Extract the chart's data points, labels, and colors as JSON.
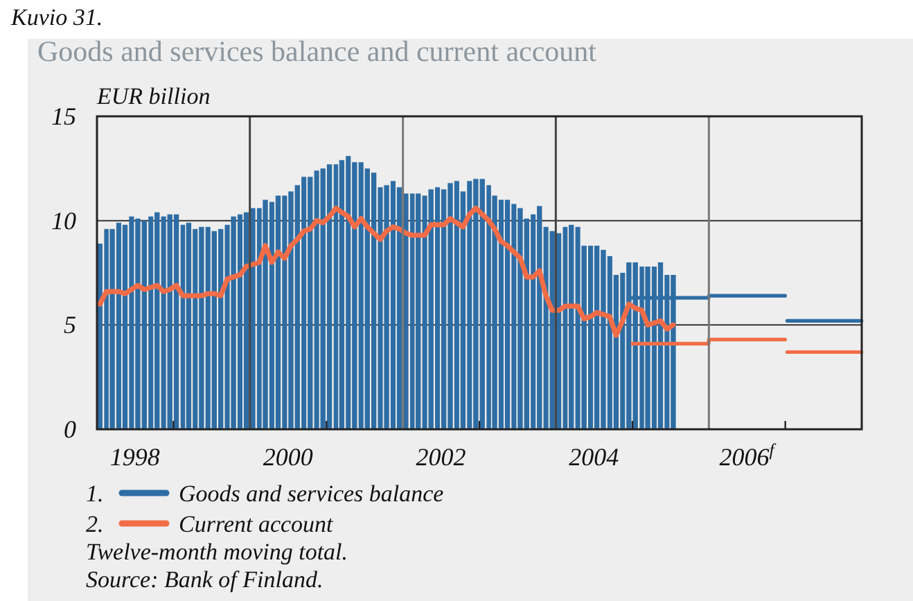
{
  "chart_data": {
    "type": "bar",
    "title": "Goods and services balance and current account",
    "ylabel": "EUR billion",
    "annotations": [
      "Kuvio 31.",
      "1.",
      "2.",
      "Twelve-month moving total.",
      "Source: Bank of Finland."
    ],
    "x": [
      "1998-01-15",
      "1998-02-15",
      "1998-03-15",
      "1998-04-15",
      "1998-05-15",
      "1998-06-15",
      "1998-07-15",
      "1998-08-15",
      "1998-09-15",
      "1998-10-15",
      "1998-11-15",
      "1998-12-15",
      "1999-01-15",
      "1999-02-15",
      "1999-03-15",
      "1999-04-15",
      "1999-05-15",
      "1999-06-15",
      "1999-07-15",
      "1999-08-15",
      "1999-09-15",
      "1999-10-15",
      "1999-11-15",
      "1999-12-15",
      "2000-01-15",
      "2000-02-15",
      "2000-03-15",
      "2000-04-15",
      "2000-05-15",
      "2000-06-15",
      "2000-07-15",
      "2000-08-15",
      "2000-09-15",
      "2000-10-15",
      "2000-11-15",
      "2000-12-15",
      "2001-01-15",
      "2001-02-15",
      "2001-03-15",
      "2001-04-15",
      "2001-05-15",
      "2001-06-15",
      "2001-07-15",
      "2001-08-15",
      "2001-09-15",
      "2001-10-15",
      "2001-11-15",
      "2001-12-15",
      "2002-01-15",
      "2002-02-15",
      "2002-03-15",
      "2002-04-15",
      "2002-05-15",
      "2002-06-15",
      "2002-07-15",
      "2002-08-15",
      "2002-09-15",
      "2002-10-15",
      "2002-11-15",
      "2002-12-15",
      "2003-01-15",
      "2003-02-15",
      "2003-03-15",
      "2003-04-15",
      "2003-05-15",
      "2003-06-15",
      "2003-07-15",
      "2003-08-15",
      "2003-09-15",
      "2003-10-15",
      "2003-11-15",
      "2003-12-15",
      "2004-01-15",
      "2004-02-15",
      "2004-03-15",
      "2004-04-15",
      "2004-05-15",
      "2004-06-15",
      "2004-07-15",
      "2004-08-15",
      "2004-09-15",
      "2004-10-15",
      "2004-11-15",
      "2004-12-15",
      "2005-01-15",
      "2005-02-15",
      "2005-03-15",
      "2005-04-15",
      "2005-05-15",
      "2005-06-15",
      "2005-07-15"
    ],
    "series": [
      {
        "name": "Goods and services balance",
        "color": "#2e6da4",
        "values": [
          8.9,
          9.6,
          9.6,
          9.9,
          9.8,
          10.2,
          10.1,
          10.0,
          10.2,
          10.4,
          10.2,
          10.3,
          10.3,
          9.8,
          9.9,
          9.6,
          9.7,
          9.7,
          9.5,
          9.6,
          9.8,
          10.2,
          10.3,
          10.4,
          10.6,
          10.6,
          11.0,
          10.9,
          11.2,
          11.2,
          11.4,
          11.7,
          12.1,
          12.1,
          12.4,
          12.5,
          12.7,
          12.7,
          12.9,
          13.1,
          12.8,
          12.8,
          12.5,
          12.3,
          11.6,
          11.7,
          11.9,
          11.6,
          11.3,
          11.3,
          11.3,
          11.2,
          11.5,
          11.6,
          11.5,
          11.8,
          11.9,
          11.4,
          11.9,
          12.0,
          12.0,
          11.7,
          11.2,
          11.0,
          11.0,
          10.8,
          10.6,
          10.1,
          10.3,
          10.7,
          9.7,
          9.5,
          9.4,
          9.7,
          9.8,
          9.7,
          8.8,
          8.8,
          8.8,
          8.6,
          8.3,
          7.4,
          7.5,
          8.0,
          8.0,
          7.8,
          7.8,
          7.8,
          8.0,
          7.4,
          7.4
        ]
      },
      {
        "name": "Current account",
        "type": "line",
        "color": "#f26d47",
        "values": [
          6.0,
          6.6,
          6.6,
          6.6,
          6.5,
          6.7,
          6.9,
          6.7,
          6.8,
          6.9,
          6.6,
          6.7,
          6.9,
          6.4,
          6.4,
          6.4,
          6.4,
          6.5,
          6.5,
          6.4,
          7.2,
          7.3,
          7.4,
          7.8,
          7.9,
          8.0,
          8.8,
          8.0,
          8.5,
          8.2,
          8.8,
          9.1,
          9.5,
          9.6,
          10.0,
          9.9,
          10.2,
          10.6,
          10.4,
          10.2,
          9.7,
          10.1,
          9.7,
          9.4,
          9.1,
          9.5,
          9.7,
          9.6,
          9.4,
          9.3,
          9.3,
          9.3,
          9.8,
          9.8,
          9.8,
          10.1,
          9.9,
          9.7,
          10.3,
          10.6,
          10.3,
          10.0,
          9.6,
          9.0,
          8.8,
          8.5,
          8.2,
          7.3,
          7.3,
          7.6,
          6.4,
          5.7,
          5.7,
          5.9,
          5.9,
          5.9,
          5.3,
          5.4,
          5.6,
          5.5,
          5.4,
          4.5,
          5.2,
          6.0,
          5.8,
          5.7,
          5.0,
          5.1,
          5.2,
          4.8,
          5.0
        ]
      },
      {
        "type": "line",
        "color": "#2e6da4",
        "x": [
          "2005-01-01",
          "2005-12-31",
          "2006-01-01",
          "2006-12-31",
          "2007-01-05",
          "2007-01-10",
          "2007-12-31"
        ],
        "values": [
          6.3,
          6.3,
          6.4,
          6.4,
          null,
          5.2,
          5.2
        ]
      },
      {
        "type": "line",
        "color": "#f26d47",
        "x": [
          "2005-01-01",
          "2005-12-31",
          "2006-01-01",
          "2006-12-31",
          "2007-01-05",
          "2007-01-10",
          "2007-12-31"
        ],
        "values": [
          4.1,
          4.1,
          4.3,
          4.3,
          null,
          3.7,
          3.7
        ]
      }
    ],
    "xlim": [
      "1998",
      "2008"
    ],
    "xticks": [
      {
        "value": "1998-07",
        "label": "1998"
      },
      {
        "value": "1999",
        "label": null
      },
      {
        "value": "2000-07",
        "label": "2000"
      },
      {
        "value": "2001",
        "label": null
      },
      {
        "value": "2002-07",
        "label": "2002"
      },
      {
        "value": "2003",
        "label": null
      },
      {
        "value": "2004-07",
        "label": "2004"
      },
      {
        "value": "2005",
        "label": null
      },
      {
        "value": "2006-07",
        "label": "2006$^{f}$"
      },
      {
        "value": "2007",
        "label": null
      }
    ],
    "ylim": [
      0,
      15
    ],
    "yticks": [
      0,
      5,
      10,
      15
    ],
    "grid": "y",
    "ref_lines": [
      {
        "axis": "x",
        "value": "2000",
        "color": "#444444"
      },
      {
        "axis": "x",
        "value": "2002",
        "color": "#777777"
      },
      {
        "axis": "x",
        "value": "2004",
        "color": "#444444"
      },
      {
        "axis": "x",
        "value": "2006",
        "color": "#777777"
      }
    ],
    "legend": "bottom"
  }
}
